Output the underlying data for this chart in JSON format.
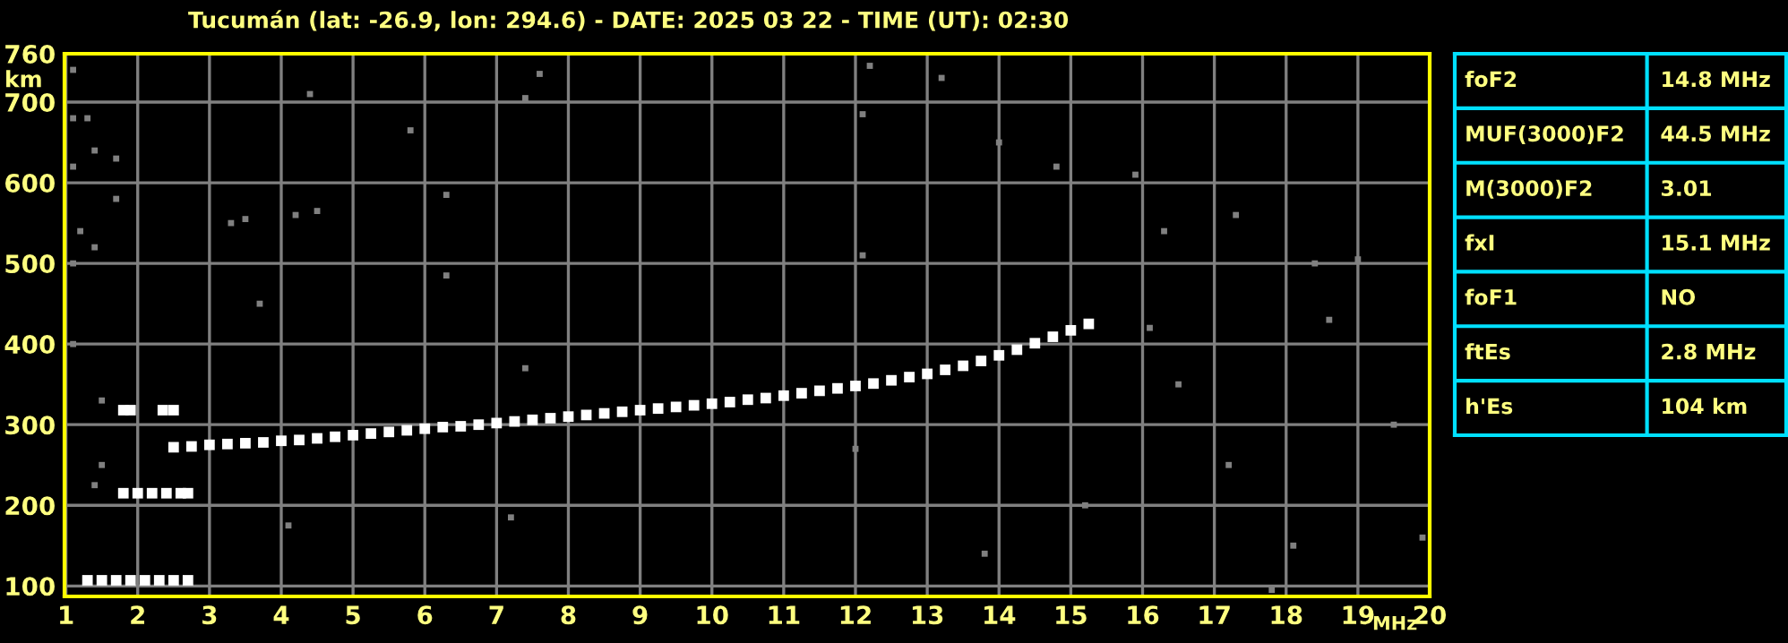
{
  "chart_data": [
    {
      "type": "scatter",
      "title": "Tucumán (lat: -26.9, lon: 294.6) - DATE: 2025 03 22 - TIME (UT): 02:30",
      "xlabel": "MHz",
      "ylabel": "km",
      "xlim": [
        0.98,
        20
      ],
      "ylim": [
        87,
        760
      ],
      "xticks": [
        1,
        2,
        3,
        4,
        5,
        6,
        7,
        8,
        9,
        10,
        11,
        12,
        13,
        14,
        15,
        16,
        17,
        18,
        19,
        20
      ],
      "yticks": [
        100,
        200,
        300,
        400,
        500,
        600,
        700,
        760
      ],
      "grid": true,
      "marker": "square",
      "series": [
        {
          "color": "#ffffff",
          "x": [
            2.5,
            2.75,
            3,
            3.25,
            3.5,
            3.75,
            4,
            4.25,
            4.5,
            4.75,
            5,
            5.25,
            5.5,
            5.75,
            6,
            6.25,
            6.5,
            6.75,
            7,
            7.25,
            7.5,
            7.75,
            8,
            8.25,
            8.5,
            8.75,
            9,
            9.25,
            9.5,
            9.75,
            10,
            10.25,
            10.5,
            10.75,
            11,
            11.25,
            11.5,
            11.75,
            12,
            12.25,
            12.5,
            12.75,
            13,
            13.25,
            13.5,
            13.75,
            14,
            14.25,
            14.5,
            14.75,
            15,
            15.25
          ],
          "values": [
            272,
            273,
            275,
            276,
            277,
            278,
            280,
            281,
            283,
            285,
            287,
            289,
            291,
            293,
            295,
            297,
            298,
            300,
            302,
            304,
            306,
            308,
            310,
            312,
            314,
            316,
            318,
            320,
            322,
            324,
            326,
            328,
            331,
            333,
            336,
            339,
            342,
            345,
            348,
            351,
            355,
            359,
            363,
            368,
            373,
            379,
            386,
            393,
            401,
            409,
            417,
            425
          ]
        },
        {
          "color": "#ffffff",
          "x": [
            1.3,
            1.5,
            1.7,
            1.9,
            2.1,
            2.3,
            2.5,
            2.7
          ],
          "values": [
            107,
            107,
            107,
            107,
            107,
            107,
            107,
            107
          ]
        },
        {
          "color": "#ffffff",
          "x": [
            1.8,
            2.0,
            2.2,
            2.4,
            2.6,
            2.7
          ],
          "values": [
            215,
            215,
            215,
            215,
            215,
            215
          ]
        },
        {
          "color": "#ffffff",
          "x": [
            1.8,
            1.9,
            2.35,
            2.5
          ],
          "values": [
            318,
            318,
            318,
            318
          ]
        },
        {
          "color": "#808080",
          "x": [
            1.1,
            1.1,
            1.3,
            1.1,
            1.4,
            1.2,
            1.1,
            1.4,
            1.1,
            1.5,
            1.5,
            1.4,
            1.7,
            1.7,
            3.3,
            3.5,
            4.2,
            4.5,
            3.7,
            4.4,
            5.8,
            6.3,
            6.3,
            7.6,
            7.4,
            7.4,
            7.2,
            4.1,
            12.2,
            12.1,
            12.1,
            12.0,
            13.2,
            14.8,
            15.9,
            16.3,
            17.3,
            18.4,
            19.0,
            16.1,
            18.6,
            17.2,
            18.1,
            19.9,
            17.8,
            16.5,
            19.5,
            15.2,
            13.8,
            14.0
          ],
          "values": [
            740,
            680,
            680,
            620,
            640,
            540,
            500,
            520,
            400,
            330,
            250,
            225,
            630,
            580,
            550,
            555,
            560,
            565,
            450,
            710,
            665,
            585,
            485,
            735,
            705,
            370,
            185,
            175,
            745,
            685,
            510,
            270,
            730,
            620,
            610,
            540,
            560,
            500,
            505,
            420,
            430,
            250,
            150,
            160,
            95,
            350,
            300,
            200,
            140,
            650
          ]
        }
      ]
    },
    {
      "type": "other",
      "annotations": [
        "foF2",
        "14.8 MHz",
        "MUF(3000)F2",
        "44.5 MHz",
        "M(3000)F2",
        "3.01",
        "fxI",
        "15.1 MHz",
        "foF1",
        "NO",
        "ftEs",
        "2.8 MHz",
        "h'Es",
        "104 km"
      ]
    }
  ]
}
